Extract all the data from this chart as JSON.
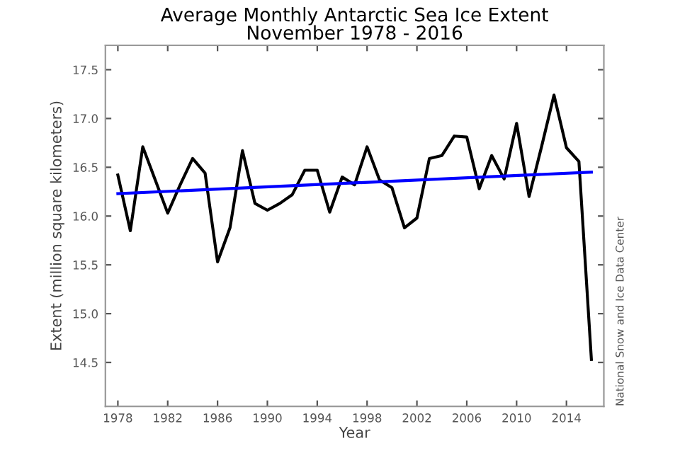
{
  "chart_data": {
    "type": "line",
    "title": "Average Monthly Antarctic Sea Ice Extent\nNovember 1978 - 2016",
    "xlabel": "Year",
    "ylabel": "Extent (million square kilometers)",
    "annotations": [
      "National Snow and Ice Data Center"
    ],
    "series": [
      {
        "color": "#000000",
        "x": [
          1978,
          1979,
          1980,
          1981,
          1982,
          1983,
          1984,
          1985,
          1986,
          1987,
          1988,
          1989,
          1990,
          1991,
          1992,
          1993,
          1994,
          1995,
          1996,
          1997,
          1998,
          1999,
          2000,
          2001,
          2002,
          2003,
          2004,
          2005,
          2006,
          2007,
          2008,
          2009,
          2010,
          2011,
          2012,
          2013,
          2014,
          2015,
          2016
        ],
        "values": [
          16.42,
          15.85,
          16.71,
          16.37,
          16.03,
          16.32,
          16.59,
          16.44,
          15.53,
          15.88,
          16.67,
          16.13,
          16.06,
          16.13,
          16.22,
          16.47,
          16.47,
          16.04,
          16.4,
          16.32,
          16.71,
          16.37,
          16.29,
          15.88,
          15.98,
          16.59,
          16.62,
          16.82,
          16.81,
          16.28,
          16.62,
          16.38,
          16.95,
          16.2,
          16.71,
          17.24,
          16.7,
          16.56,
          14.53
        ]
      },
      {
        "color": "#0000ff",
        "x": [
          1978,
          2016
        ],
        "values": [
          16.23,
          16.45
        ]
      }
    ],
    "xlim": [
      1977,
      2017
    ],
    "ylim": [
      14.05,
      17.75
    ],
    "xticks": [
      1978,
      1982,
      1986,
      1990,
      1994,
      1998,
      2002,
      2006,
      2010,
      2014
    ],
    "yticks": [
      14.5,
      {
        "value": 15,
        "label": "15.0"
      },
      15.5,
      {
        "value": 16,
        "label": "16.0"
      },
      16.5,
      {
        "value": 17,
        "label": "17.0"
      },
      17.5
    ],
    "grid": false,
    "marker": "none",
    "line_style": "solid"
  }
}
